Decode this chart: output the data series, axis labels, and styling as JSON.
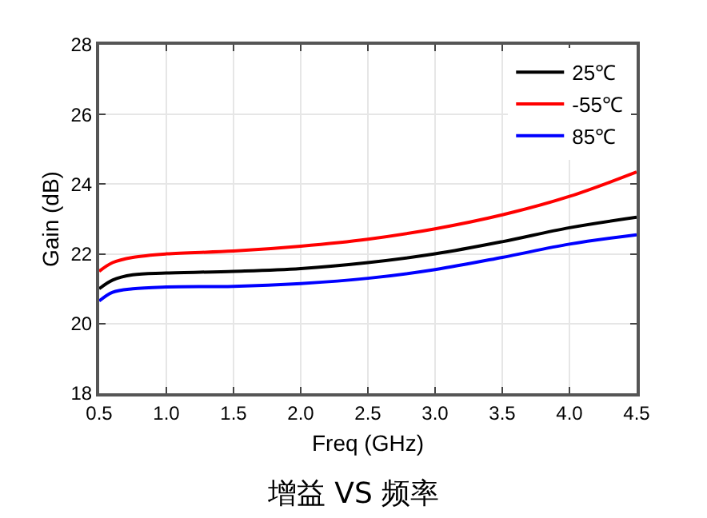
{
  "chart_data": {
    "type": "line",
    "title": "增益 VS 频率",
    "xlabel": "Freq (GHz)",
    "ylabel": "Gain (dB)",
    "x": [
      0.5,
      0.6,
      0.75,
      1.0,
      1.5,
      2.0,
      2.5,
      3.0,
      3.5,
      4.0,
      4.5
    ],
    "series": [
      {
        "name": "25℃",
        "color": "#000000",
        "values": [
          21.0,
          21.25,
          21.4,
          21.45,
          21.5,
          21.58,
          21.75,
          22.0,
          22.35,
          22.75,
          23.05
        ]
      },
      {
        "name": "-55℃",
        "color": "#ff0000",
        "values": [
          21.5,
          21.75,
          21.9,
          22.0,
          22.08,
          22.22,
          22.42,
          22.72,
          23.12,
          23.65,
          24.35
        ]
      },
      {
        "name": "85℃",
        "color": "#0000ff",
        "values": [
          20.65,
          20.9,
          21.0,
          21.05,
          21.07,
          21.15,
          21.3,
          21.55,
          21.9,
          22.28,
          22.55
        ]
      }
    ],
    "xlim": [
      0.5,
      4.5
    ],
    "xticks": [
      {
        "value": 0.5,
        "label": "0.5"
      },
      {
        "value": 1,
        "label": "1.0"
      },
      {
        "value": 1.5,
        "label": "1.5"
      },
      {
        "value": 2,
        "label": "2.0"
      },
      {
        "value": 2.5,
        "label": "2.5"
      },
      {
        "value": 3,
        "label": "3.0"
      },
      {
        "value": 3.5,
        "label": "3.5"
      },
      {
        "value": 4,
        "label": "4.0"
      },
      {
        "value": 4.5,
        "label": "4.5"
      }
    ],
    "ylim": [
      18,
      28
    ],
    "yticks": [
      18,
      20,
      22,
      24,
      26,
      28
    ],
    "grid": true,
    "legend": "top right",
    "marker": "none",
    "line_style": "solid"
  }
}
